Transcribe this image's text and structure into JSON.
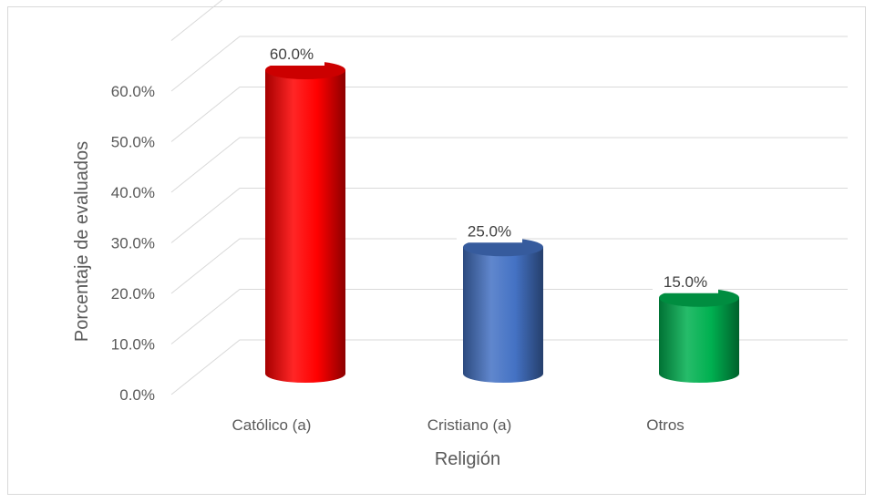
{
  "chart_data": {
    "type": "bar",
    "style": "3d-cylinder",
    "categories": [
      "Católico (a)",
      "Cristiano (a)",
      "Otros"
    ],
    "values": [
      60.0,
      25.0,
      15.0
    ],
    "data_labels": [
      "60.0%",
      "25.0%",
      "15.0%"
    ],
    "colors": [
      "#ff0000",
      "#4472c4",
      "#00b050"
    ],
    "title": "",
    "xlabel": "Religión",
    "ylabel": "Porcentaje de evaluados",
    "ylim": [
      0,
      60
    ],
    "yticks": [
      "0.0%",
      "10.0%",
      "20.0%",
      "30.0%",
      "40.0%",
      "50.0%",
      "60.0%"
    ],
    "grid": true,
    "legend": "none"
  }
}
